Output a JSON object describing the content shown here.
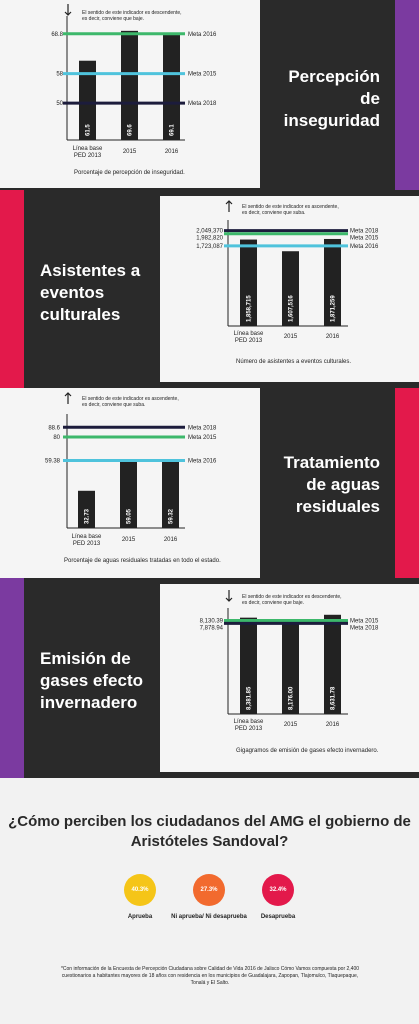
{
  "colors": {
    "band": "#2a2a2a",
    "card": "#f5f5f5",
    "purple": "#7b3aa0",
    "red": "#e3194b",
    "green": "#3db86b",
    "cyan": "#4fc3dc",
    "navy": "#1c1c3c",
    "bar": "#222222"
  },
  "sections": [
    {
      "title": "Percepción de inseguridad",
      "note": [
        "El sentido de este indicador es descendente,",
        "es decir, conviene que baje."
      ],
      "direction": "down",
      "caption": "Porcentaje de percepción de inseguridad."
    },
    {
      "title": "Asistentes a eventos culturales",
      "note": [
        "El sentido de este indicador es ascendente,",
        "es decir, conviene que suba."
      ],
      "direction": "up",
      "caption": "Número de asistentes a eventos culturales."
    },
    {
      "title": "Tratamiento de aguas residuales",
      "note": [
        "El sentido de este indicador es ascendente,",
        "es decir, conviene que suba."
      ],
      "direction": "up",
      "caption": "Porcentaje de aguas residuales tratadas en todo el estado."
    },
    {
      "title": "Emisión de gases efecto invernadero",
      "note": [
        "El sentido de este indicador es descendente,",
        "es decir, conviene que baje."
      ],
      "direction": "down",
      "caption": "Gigagramos de emisión de gases efecto invernadero."
    }
  ],
  "chart_data": [
    {
      "type": "bar",
      "categories": [
        "Línea base PED 2013",
        "2015",
        "2016"
      ],
      "values": [
        61.5,
        69.6,
        69.1
      ],
      "value_labels": [
        "61.5",
        "69.6",
        "69.1"
      ],
      "ylim": [
        40,
        72
      ],
      "targets": [
        {
          "label": "Meta 2016",
          "value": 68.8,
          "tick": "68.8",
          "color": "green"
        },
        {
          "label": "Meta 2015",
          "value": 58,
          "tick": "58",
          "color": "cyan"
        },
        {
          "label": "Meta 2018",
          "value": 50,
          "tick": "50",
          "color": "navy"
        }
      ],
      "caption": "Porcentaje de percepción de inseguridad."
    },
    {
      "type": "bar",
      "categories": [
        "Línea base PED 2013",
        "2015",
        "2016"
      ],
      "values": [
        1858715,
        1607516,
        1871259
      ],
      "value_labels": [
        "1,858,715",
        "1,607,516",
        "1,871,259"
      ],
      "ylim": [
        0,
        2150000
      ],
      "targets": [
        {
          "label": "Meta 2018",
          "value": 2049370,
          "tick": "2,049,370",
          "color": "navy"
        },
        {
          "label": "Meta 2015",
          "value": 1982820,
          "tick": "1,982,820",
          "color": "green"
        },
        {
          "label": "Meta 2016",
          "value": 1723087,
          "tick": "1,723,087",
          "color": "cyan"
        }
      ],
      "caption": "Número de asistentes a eventos culturales."
    },
    {
      "type": "bar",
      "categories": [
        "Línea base PED 2013",
        "2015",
        "2016"
      ],
      "values": [
        32.73,
        59.05,
        59.32
      ],
      "value_labels": [
        "32.73",
        "59.05",
        "59.32"
      ],
      "ylim": [
        0,
        95
      ],
      "targets": [
        {
          "label": "Meta 2018",
          "value": 88.6,
          "tick": "88.6",
          "color": "navy"
        },
        {
          "label": "Meta 2015",
          "value": 80,
          "tick": "80",
          "color": "green"
        },
        {
          "label": "Meta 2016",
          "value": 59.38,
          "tick": "59.38",
          "color": "cyan"
        }
      ],
      "caption": "Porcentaje de aguas residuales tratadas en todo el estado."
    },
    {
      "type": "bar",
      "categories": [
        "Línea base PED 2013",
        "2015",
        "2016"
      ],
      "values": [
        8381.85,
        8176.0,
        8631.78
      ],
      "value_labels": [
        "8,381.85",
        "8,176.00",
        "8,631.78"
      ],
      "ylim": [
        0,
        8700
      ],
      "targets": [
        {
          "label": "Meta 2015",
          "value": 8130.39,
          "tick": "8,130.39",
          "color": "green"
        },
        {
          "label": "Meta 2018",
          "value": 7878.94,
          "tick": "7,878.94",
          "color": "navy"
        }
      ],
      "caption": "Gigagramos de emisión de gases efecto invernadero."
    }
  ],
  "survey": {
    "title": "¿Cómo perciben los ciudadanos del AMG el gobierno de Aristóteles Sandoval?",
    "items": [
      {
        "value": "40.3%",
        "label": "Aprueba",
        "color": "#f5c518"
      },
      {
        "value": "27.3%",
        "label": "Ni aprueba/ Ni desaprueba",
        "color": "#f26a2e"
      },
      {
        "value": "32.4%",
        "label": "Desaprueba",
        "color": "#e3194b"
      }
    ],
    "footnote": "*Con información de la Encuesta de Percepción Ciudadana sobre Calidad de Vida 2016 de Jalisco Cómo Vamos compuesta por 2,400 cuestionarios a habitantes mayores de 18 años con residencia en los municipios de Guadalajara, Zapopan, Tlajomulco, Tlaquepaque, Tonalá y El Salto."
  }
}
